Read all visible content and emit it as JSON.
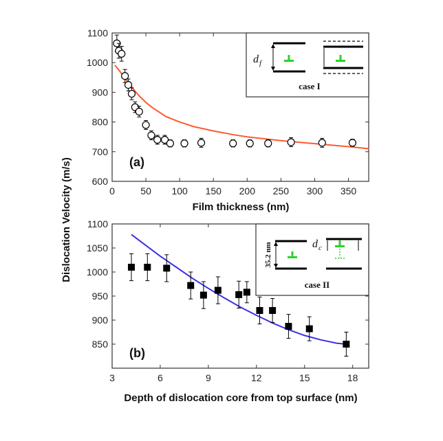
{
  "figure": {
    "ylabel": "Dislocation Velocity (m/s)"
  },
  "chart_data": [
    {
      "type": "scatter",
      "panel_label": "(a)",
      "xlabel": "Film thickness (nm)",
      "xlim": [
        0,
        380
      ],
      "ylim": [
        600,
        1100
      ],
      "xticks": [
        0,
        50,
        100,
        150,
        200,
        250,
        300,
        350
      ],
      "yticks": [
        600,
        700,
        800,
        900,
        1000,
        1100
      ],
      "series": [
        {
          "marker": "open-circle",
          "points": [
            {
              "x": 7,
              "y": 1065,
              "err": 28
            },
            {
              "x": 10,
              "y": 1040,
              "err": 25
            },
            {
              "x": 14,
              "y": 1030,
              "err": 25
            },
            {
              "x": 19,
              "y": 955,
              "err": 22
            },
            {
              "x": 24,
              "y": 925,
              "err": 20
            },
            {
              "x": 29,
              "y": 895,
              "err": 20
            },
            {
              "x": 34,
              "y": 850,
              "err": 18
            },
            {
              "x": 40,
              "y": 835,
              "err": 18
            },
            {
              "x": 50,
              "y": 790,
              "err": 15
            },
            {
              "x": 58,
              "y": 755,
              "err": 15
            },
            {
              "x": 67,
              "y": 740,
              "err": 15
            },
            {
              "x": 78,
              "y": 740,
              "err": 15
            },
            {
              "x": 86,
              "y": 728,
              "err": 12
            },
            {
              "x": 107,
              "y": 728,
              "err": 12
            },
            {
              "x": 132,
              "y": 730,
              "err": 15
            },
            {
              "x": 179,
              "y": 728,
              "err": 12
            },
            {
              "x": 204,
              "y": 728,
              "err": 12
            },
            {
              "x": 231,
              "y": 728,
              "err": 12
            },
            {
              "x": 265,
              "y": 732,
              "err": 15
            },
            {
              "x": 311,
              "y": 730,
              "err": 15
            },
            {
              "x": 356,
              "y": 730,
              "err": 12
            }
          ]
        },
        {
          "kind": "fit",
          "color": "#ff5a2e",
          "x": [
            4,
            10,
            20,
            30,
            40,
            50,
            60,
            80,
            100,
            120,
            150,
            180,
            200,
            250,
            300,
            350,
            380
          ],
          "y": [
            992,
            975,
            945,
            915,
            888,
            866,
            848,
            818,
            800,
            785,
            770,
            757,
            750,
            737,
            727,
            717,
            710
          ]
        }
      ],
      "inset": {
        "label": "case I",
        "symbol": "d",
        "subscript": "f"
      }
    },
    {
      "type": "scatter",
      "panel_label": "(b)",
      "xlabel": "Depth of dislocation core from top surface (nm)",
      "xlim": [
        3,
        19
      ],
      "ylim": [
        800,
        1100
      ],
      "xticks": [
        3,
        6,
        9,
        12,
        15,
        18
      ],
      "yticks": [
        850,
        900,
        950,
        1000,
        1050,
        1100
      ],
      "series": [
        {
          "marker": "filled-square",
          "points": [
            {
              "x": 4.2,
              "y": 1010,
              "err": 28
            },
            {
              "x": 5.2,
              "y": 1010,
              "err": 28
            },
            {
              "x": 6.4,
              "y": 1008,
              "err": 28
            },
            {
              "x": 7.9,
              "y": 972,
              "err": 28
            },
            {
              "x": 8.7,
              "y": 952,
              "err": 28
            },
            {
              "x": 9.6,
              "y": 962,
              "err": 28
            },
            {
              "x": 10.9,
              "y": 953,
              "err": 28
            },
            {
              "x": 11.4,
              "y": 958,
              "err": 22
            },
            {
              "x": 12.2,
              "y": 920,
              "err": 28
            },
            {
              "x": 13.0,
              "y": 920,
              "err": 25
            },
            {
              "x": 14.0,
              "y": 887,
              "err": 25
            },
            {
              "x": 15.3,
              "y": 882,
              "err": 25
            },
            {
              "x": 17.6,
              "y": 850,
              "err": 25
            }
          ]
        },
        {
          "kind": "fit",
          "color": "#3a2ee8",
          "x": [
            4.2,
            5,
            6,
            7,
            8,
            9,
            10,
            11,
            12,
            13,
            14,
            15,
            16,
            17,
            17.6
          ],
          "y": [
            1078,
            1058,
            1033,
            1010,
            987,
            966,
            946,
            927,
            910,
            894,
            880,
            868,
            859,
            852,
            850
          ]
        }
      ],
      "inset": {
        "label": "case II",
        "value": "35.2 nm",
        "symbol": "d",
        "subscript": "c"
      }
    }
  ]
}
